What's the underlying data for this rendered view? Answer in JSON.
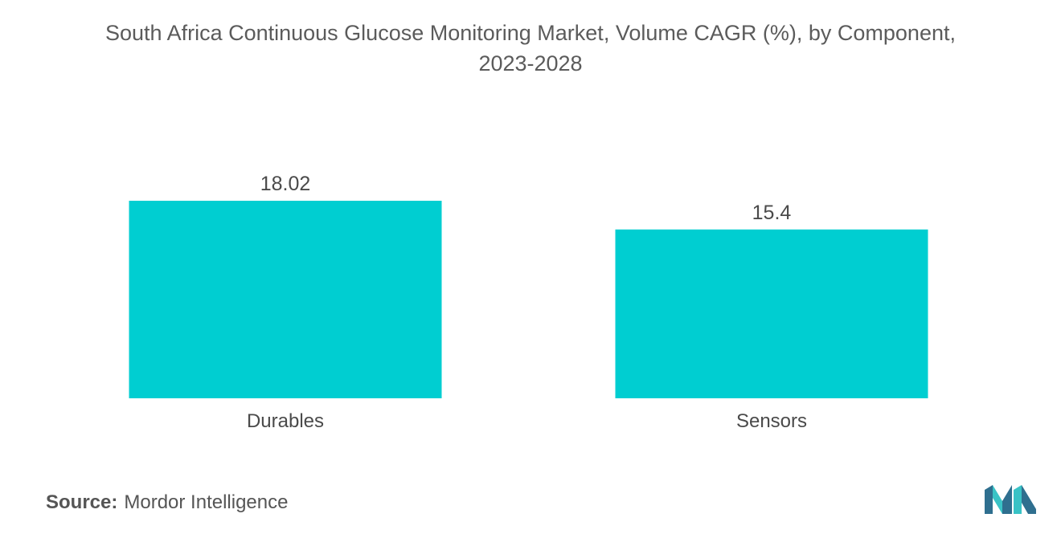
{
  "title": {
    "line1": "South Africa Continuous Glucose Monitoring Market, Volume CAGR (%), by Component,",
    "line2": "2023-2028"
  },
  "footer": {
    "source_label": "Source:",
    "source_value": "Mordor Intelligence"
  },
  "colors": {
    "bar": "#00CED1",
    "text": "#4a4a4a",
    "logo_dark": "#2f6f8f",
    "logo_light": "#39c3c6"
  },
  "logo_icon": "mordor-intelligence-logo-icon",
  "chart_data": {
    "type": "bar",
    "title": "South Africa Continuous Glucose Monitoring Market, Volume CAGR (%), by Component, 2023-2028",
    "categories": [
      "Durables",
      "Sensors"
    ],
    "values": [
      18.02,
      15.4
    ],
    "value_labels": [
      "18.02",
      "15.4"
    ],
    "xlabel": "",
    "ylabel": "",
    "ylim": [
      0,
      18.02
    ],
    "grid": false,
    "legend": "none"
  }
}
